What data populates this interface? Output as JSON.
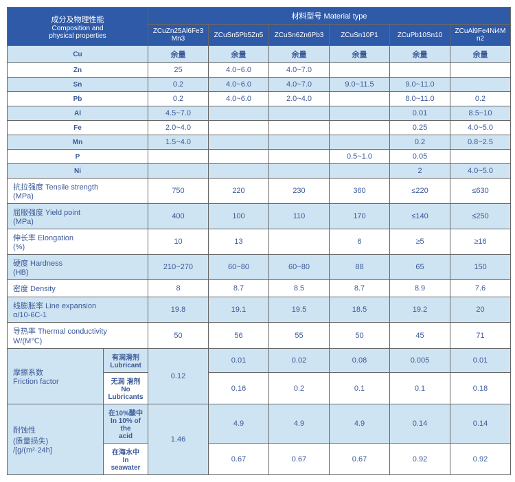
{
  "header": {
    "left_zh": "成分及物理性能",
    "left_en1": "Composition and",
    "left_en2": "physical properties",
    "top": "材料型号 Material type"
  },
  "materials": [
    "ZCuZn25Al6Fe3Mn3",
    "ZCuSn5Pb5Zn5",
    "ZCuSn6Zn6Pb3",
    "ZCuSn10P1",
    "ZCuPb10Sn10",
    "ZCuAl9Fe4Ni4Mn2"
  ],
  "rows": [
    {
      "k": "Cu",
      "v": [
        "余量",
        "余量",
        "余量",
        "余量",
        "余量",
        "余量"
      ],
      "cls": "row-light",
      "center": true,
      "bold": true
    },
    {
      "k": "Zn",
      "v": [
        "25",
        "4.0~6.0",
        "4.0~7.0",
        "",
        "",
        ""
      ],
      "cls": "row-white",
      "center": true
    },
    {
      "k": "Sn",
      "v": [
        "0.2",
        "4.0~6.0",
        "4.0~7.0",
        "9.0~11.5",
        "9.0~11.0",
        ""
      ],
      "cls": "row-light",
      "center": true
    },
    {
      "k": "Pb",
      "v": [
        "0.2",
        "4.0~6.0",
        "2.0~4.0",
        "",
        "8.0~11.0",
        "0.2"
      ],
      "cls": "row-white",
      "center": true
    },
    {
      "k": "Al",
      "v": [
        "4.5~7.0",
        "",
        "",
        "",
        "0.01",
        "8.5~10"
      ],
      "cls": "row-light",
      "center": true
    },
    {
      "k": "Fe",
      "v": [
        "2.0~4.0",
        "",
        "",
        "",
        "0.25",
        "4.0~5.0"
      ],
      "cls": "row-white",
      "center": true
    },
    {
      "k": "Mn",
      "v": [
        "1.5~4.0",
        "",
        "",
        "",
        "0.2",
        "0.8~2.5"
      ],
      "cls": "row-light",
      "center": true
    },
    {
      "k": "P",
      "v": [
        "",
        "",
        "",
        "0.5~1.0",
        "0.05",
        ""
      ],
      "cls": "row-white",
      "center": true
    },
    {
      "k": "Ni",
      "v": [
        "",
        "",
        "",
        "",
        "2",
        "4.0~5.0"
      ],
      "cls": "row-light",
      "center": true
    },
    {
      "k": "抗拉强度 Tensile strength\n(MPa)",
      "v": [
        "750",
        "220",
        "230",
        "360",
        "≤220",
        "≤630"
      ],
      "cls": "row-white"
    },
    {
      "k": "屈服强度 Yield point\n(MPa)",
      "v": [
        "400",
        "100",
        "110",
        "170",
        "≤140",
        "≤250"
      ],
      "cls": "row-light"
    },
    {
      "k": "伸长率 Elongation\n(%)",
      "v": [
        "10",
        "13",
        "",
        "6",
        "≥5",
        "≥16"
      ],
      "cls": "row-white"
    },
    {
      "k": "硬度 Hardness\n(HB)",
      "v": [
        "210~270",
        "60~80",
        "60~80",
        "88",
        "65",
        "150"
      ],
      "cls": "row-light"
    },
    {
      "k": "密度 Density",
      "v": [
        "8",
        "8.7",
        "8.5",
        "8.7",
        "8.9",
        "7.6"
      ],
      "cls": "row-white"
    },
    {
      "k": "线膨胀率 Line expansion\nα/10-6C-1",
      "v": [
        "19.8",
        "19.1",
        "19.5",
        "18.5",
        "19.2",
        "20"
      ],
      "cls": "row-light"
    },
    {
      "k": "导热率 Thermal conductivity\nW/(M℃)",
      "v": [
        "50",
        "56",
        "55",
        "50",
        "45",
        "71"
      ],
      "cls": "row-white"
    }
  ],
  "friction": {
    "label": "摩擦系数\nFriction factor",
    "sub1": "有润滑剂\nLubricant",
    "sub2": "无润 滑剂\nNo Lubricants",
    "col1": "0.12",
    "r1": [
      "0.01",
      "0.02",
      "0.08",
      "0.005",
      "0.01"
    ],
    "r2": [
      "0.16",
      "0.2",
      "0.1",
      "0.1",
      "0.18"
    ]
  },
  "corr": {
    "label": "耐蚀性\n(质量损失)\n/[g/(m²·24h]",
    "sub1": "在10%酸中\nIn 10% of the\nacid",
    "sub2": "在海水中\nIn seawater",
    "col1": "1.46",
    "r1": [
      "4.9",
      "4.9",
      "4.9",
      "0.14",
      "0.14"
    ],
    "r2": [
      "0.67",
      "0.67",
      "0.67",
      "0.92",
      "0.92"
    ]
  },
  "style": {
    "header_bg": "#2e5aa8",
    "light_bg": "#cfe4f2",
    "text_color": "#3b5998",
    "border": "#666"
  }
}
